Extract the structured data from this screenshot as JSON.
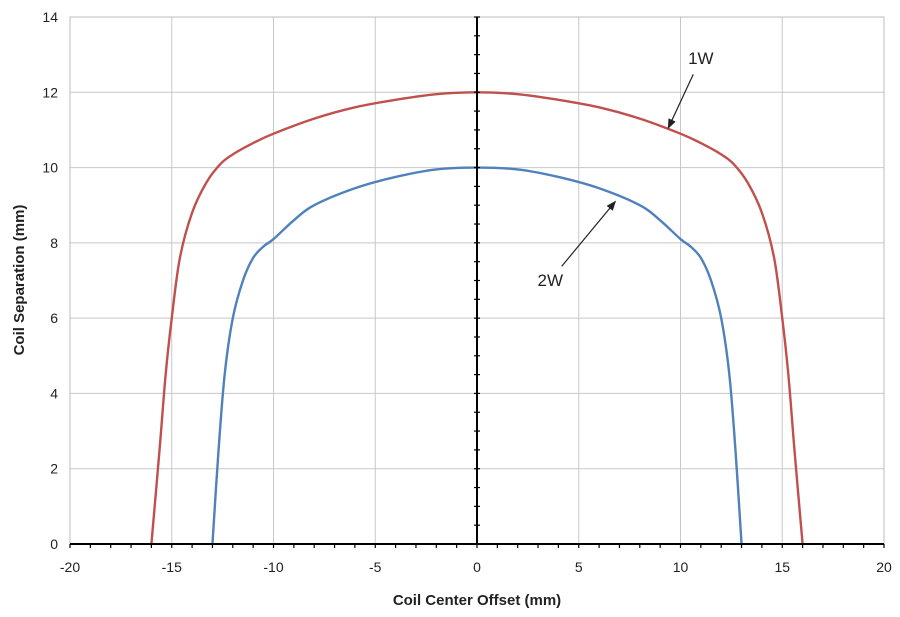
{
  "chart_data": {
    "type": "line",
    "title": "",
    "xlabel": "Coil Center Offset (mm)",
    "ylabel": "Coil Separation (mm)",
    "xlim": [
      -20,
      20
    ],
    "ylim": [
      0,
      14
    ],
    "xticks": [
      -20,
      -15,
      -10,
      -5,
      0,
      5,
      10,
      15,
      20
    ],
    "yticks": [
      0,
      2,
      4,
      6,
      8,
      10,
      12,
      14
    ],
    "grid": true,
    "legend": "none",
    "series": [
      {
        "name": "1W",
        "color": "#c0504d",
        "x": [
          -16,
          -15.6,
          -15.3,
          -15.0,
          -14.6,
          -14.0,
          -13.3,
          -12.6,
          -12.0,
          -11.0,
          -10.0,
          -8.0,
          -6.0,
          -4.0,
          -2.0,
          0,
          2.0,
          4.0,
          6.0,
          8.0,
          10.0,
          11.0,
          12.0,
          12.6,
          13.3,
          14.0,
          14.6,
          15.0,
          15.3,
          15.6,
          16
        ],
        "y": [
          0,
          2.5,
          4.5,
          6.0,
          7.6,
          8.8,
          9.6,
          10.1,
          10.35,
          10.65,
          10.9,
          11.3,
          11.6,
          11.8,
          11.95,
          12.0,
          11.95,
          11.8,
          11.6,
          11.3,
          10.9,
          10.65,
          10.35,
          10.1,
          9.6,
          8.8,
          7.6,
          6.0,
          4.5,
          2.5,
          0
        ]
      },
      {
        "name": "2W",
        "color": "#4f81bd",
        "x": [
          -13,
          -12.7,
          -12.4,
          -12.0,
          -11.5,
          -11.0,
          -10.5,
          -10.0,
          -9.0,
          -8.0,
          -6.0,
          -4.0,
          -2.0,
          0,
          2.0,
          4.0,
          6.0,
          8.0,
          9.0,
          10.0,
          10.5,
          11.0,
          11.5,
          12.0,
          12.4,
          12.7,
          13
        ],
        "y": [
          0,
          2.5,
          4.5,
          6.0,
          7.0,
          7.6,
          7.9,
          8.1,
          8.6,
          9.0,
          9.45,
          9.75,
          9.95,
          10.0,
          9.95,
          9.75,
          9.45,
          9.0,
          8.6,
          8.1,
          7.9,
          7.6,
          7.0,
          6.0,
          4.5,
          2.5,
          0
        ]
      }
    ],
    "annotations": [
      {
        "text": "1W",
        "text_at": [
          11.0,
          12.75
        ],
        "arrow_to": [
          9.4,
          11.05
        ]
      },
      {
        "text": "2W",
        "text_at": [
          3.6,
          6.85
        ],
        "arrow_to": [
          6.8,
          9.1
        ]
      }
    ]
  }
}
